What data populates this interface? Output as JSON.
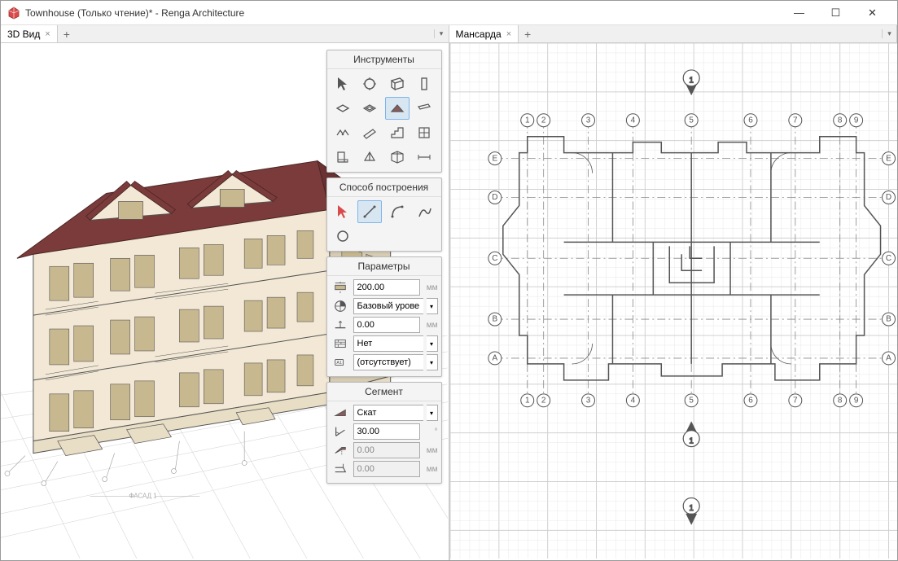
{
  "window": {
    "title": "Townhouse (Только чтение)* - Renga Architecture",
    "app_icon_color": "#d94b4b"
  },
  "tabs": {
    "left": {
      "label": "3D Вид"
    },
    "right": {
      "label": "Мансарда"
    }
  },
  "panels": {
    "tools": {
      "title": "Инструменты",
      "items": [
        "cursor",
        "object-select",
        "wall",
        "column",
        "slab",
        "opening",
        "roof-slope",
        "beam",
        "roof-multi",
        "ramp",
        "stair",
        "window",
        "door",
        "prism",
        "section",
        "dimension"
      ],
      "selected_index": 6
    },
    "method": {
      "title": "Способ построения",
      "items": [
        "pick",
        "line",
        "arc",
        "curve",
        "circle"
      ],
      "selected_index": 1
    },
    "params": {
      "title": "Параметры",
      "rows": [
        {
          "icon": "thickness",
          "value": "200.00",
          "unit": "мм",
          "type": "input"
        },
        {
          "icon": "level",
          "value": "Базовый урове",
          "type": "select"
        },
        {
          "icon": "offset",
          "value": "0.00",
          "unit": "мм",
          "type": "input"
        },
        {
          "icon": "material",
          "value": "Нет",
          "type": "select"
        },
        {
          "icon": "mark",
          "value": "(отсутствует)",
          "type": "select"
        }
      ]
    },
    "segment": {
      "title": "Сегмент",
      "rows": [
        {
          "icon": "slope-type",
          "value": "Скат",
          "type": "select"
        },
        {
          "icon": "angle",
          "value": "30.00",
          "unit": "°",
          "type": "input"
        },
        {
          "icon": "overhang",
          "value": "0.00",
          "unit": "мм",
          "type": "input-readonly"
        },
        {
          "icon": "eave",
          "value": "0.00",
          "unit": "мм",
          "type": "input-readonly"
        }
      ]
    }
  },
  "building3d": {
    "roof_color": "#7b3b3b",
    "wall_color": "#f2e8d5",
    "wall_shadow": "#d8cdb5",
    "window_color": "#c8b890",
    "line_color": "#555"
  },
  "plan2d": {
    "grid_minor_color": "#e8e8e8",
    "grid_major_color": "#d0d0d0",
    "line_color": "#555",
    "dash_color": "#888",
    "grid_letters": [
      "A",
      "B",
      "C",
      "D",
      "E"
    ],
    "grid_numbers": [
      "1",
      "2",
      "3",
      "4",
      "5",
      "6",
      "7",
      "8",
      "9"
    ]
  }
}
